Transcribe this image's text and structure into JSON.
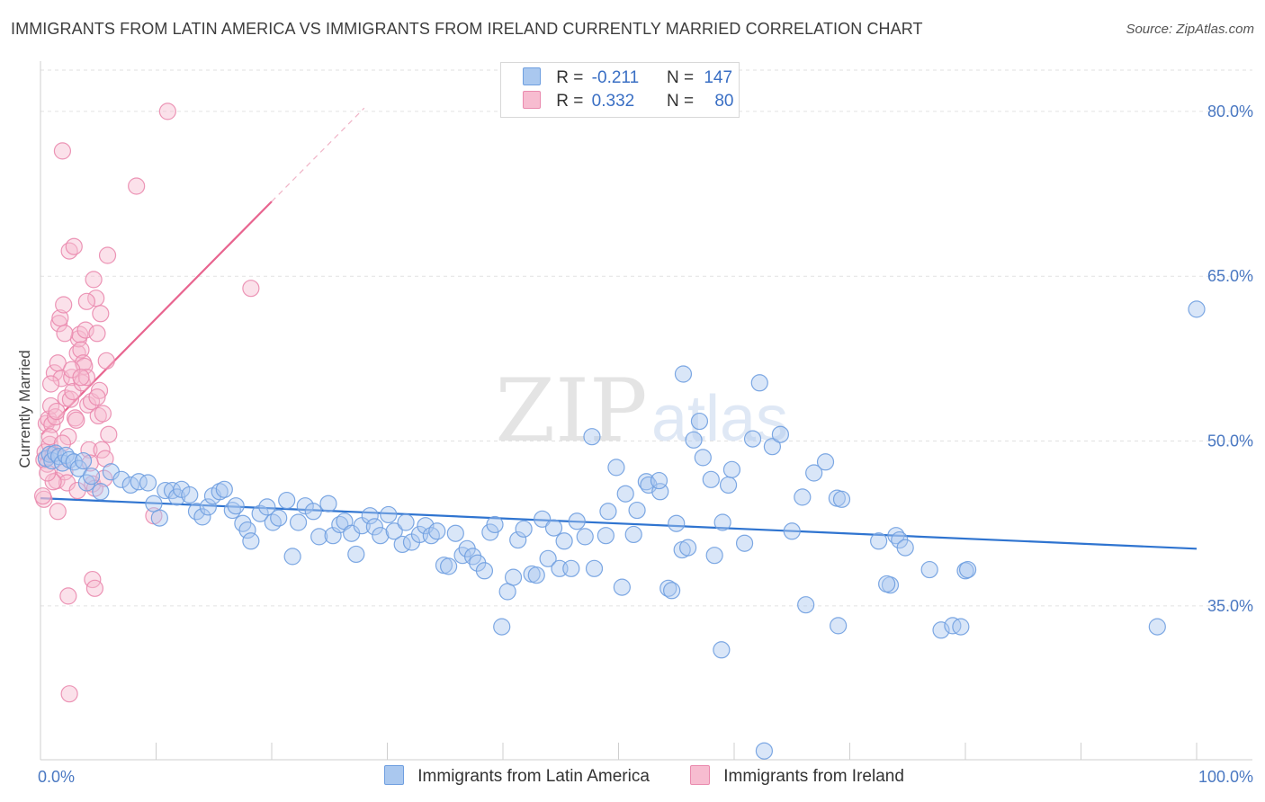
{
  "title": "IMMIGRANTS FROM LATIN AMERICA VS IMMIGRANTS FROM IRELAND CURRENTLY MARRIED CORRELATION CHART",
  "source": "Source: ZipAtlas.com",
  "watermark": {
    "zip": "ZIP",
    "atlas": "atlas"
  },
  "legend": {
    "r_label": "R =",
    "n_label": "N =",
    "rows": [
      {
        "r": "-0.211",
        "n": "147",
        "color": "#aac8ef",
        "edge": "#6f9fe0"
      },
      {
        "r": "0.332",
        "n": "80",
        "color": "#f7bcd0",
        "edge": "#ea8aae"
      }
    ]
  },
  "chart_data": {
    "type": "scatter",
    "title": "IMMIGRANTS FROM LATIN AMERICA VS IMMIGRANTS FROM IRELAND CURRENTLY MARRIED CORRELATION CHART",
    "xlabel": "",
    "ylabel": "Currently Married",
    "xlim": [
      0,
      100
    ],
    "ylim": [
      21,
      84
    ],
    "x_tick_labels": [
      "0.0%",
      "100.0%"
    ],
    "y_ticks": [
      35,
      50,
      65,
      80
    ],
    "y_tick_labels": [
      "35.0%",
      "50.0%",
      "65.0%",
      "80.0%"
    ],
    "grid": true,
    "legend_position": "bottom",
    "series": [
      {
        "name": "Immigrants from Latin America",
        "color": "#6f9fe0",
        "fill": "#aac8ef",
        "trend": {
          "x": [
            0,
            100
          ],
          "y": [
            44.8,
            40.2
          ]
        },
        "points": [
          [
            0.5,
            48.4
          ],
          [
            0.8,
            48.8
          ],
          [
            1.0,
            48.2
          ],
          [
            1.3,
            48.9
          ],
          [
            1.6,
            48.6
          ],
          [
            1.9,
            48.0
          ],
          [
            2.2,
            48.7
          ],
          [
            2.5,
            48.3
          ],
          [
            2.9,
            48.1
          ],
          [
            3.3,
            47.5
          ],
          [
            3.7,
            48.2
          ],
          [
            4.0,
            46.2
          ],
          [
            4.4,
            46.8
          ],
          [
            5.2,
            45.4
          ],
          [
            6.1,
            47.2
          ],
          [
            7.0,
            46.5
          ],
          [
            7.8,
            46.0
          ],
          [
            8.5,
            46.3
          ],
          [
            9.3,
            46.2
          ],
          [
            9.8,
            44.3
          ],
          [
            10.3,
            43.0
          ],
          [
            10.8,
            45.5
          ],
          [
            11.4,
            45.5
          ],
          [
            11.8,
            44.9
          ],
          [
            12.2,
            45.6
          ],
          [
            12.9,
            45.1
          ],
          [
            13.5,
            43.6
          ],
          [
            14.0,
            43.1
          ],
          [
            14.5,
            44.0
          ],
          [
            14.9,
            45.0
          ],
          [
            15.5,
            45.4
          ],
          [
            15.9,
            45.6
          ],
          [
            16.6,
            43.7
          ],
          [
            16.9,
            44.1
          ],
          [
            17.5,
            42.5
          ],
          [
            17.9,
            41.9
          ],
          [
            18.2,
            40.9
          ],
          [
            19.0,
            43.4
          ],
          [
            19.6,
            44.0
          ],
          [
            20.1,
            42.6
          ],
          [
            20.6,
            43.0
          ],
          [
            21.3,
            44.6
          ],
          [
            21.8,
            39.5
          ],
          [
            22.3,
            42.6
          ],
          [
            22.9,
            44.1
          ],
          [
            23.6,
            43.6
          ],
          [
            24.1,
            41.3
          ],
          [
            24.9,
            44.3
          ],
          [
            25.3,
            41.4
          ],
          [
            25.9,
            42.4
          ],
          [
            26.3,
            42.7
          ],
          [
            26.9,
            41.6
          ],
          [
            27.3,
            39.7
          ],
          [
            27.8,
            42.3
          ],
          [
            28.5,
            43.2
          ],
          [
            28.9,
            42.2
          ],
          [
            29.4,
            41.4
          ],
          [
            30.1,
            43.3
          ],
          [
            30.6,
            41.8
          ],
          [
            31.3,
            40.6
          ],
          [
            31.6,
            42.6
          ],
          [
            32.1,
            40.8
          ],
          [
            32.8,
            41.5
          ],
          [
            33.3,
            42.3
          ],
          [
            33.8,
            41.4
          ],
          [
            34.3,
            41.8
          ],
          [
            34.9,
            38.7
          ],
          [
            35.3,
            38.6
          ],
          [
            35.9,
            41.6
          ],
          [
            36.5,
            39.6
          ],
          [
            36.9,
            40.2
          ],
          [
            37.4,
            39.5
          ],
          [
            37.8,
            38.9
          ],
          [
            38.4,
            38.2
          ],
          [
            38.9,
            41.7
          ],
          [
            39.3,
            42.4
          ],
          [
            39.9,
            33.1
          ],
          [
            40.4,
            36.3
          ],
          [
            40.9,
            37.6
          ],
          [
            41.3,
            41.0
          ],
          [
            41.8,
            42.0
          ],
          [
            42.5,
            37.9
          ],
          [
            42.9,
            37.8
          ],
          [
            43.4,
            42.9
          ],
          [
            43.9,
            39.3
          ],
          [
            44.4,
            42.1
          ],
          [
            44.9,
            38.4
          ],
          [
            45.3,
            40.9
          ],
          [
            45.9,
            38.4
          ],
          [
            46.4,
            42.7
          ],
          [
            47.1,
            41.3
          ],
          [
            47.7,
            50.4
          ],
          [
            47.9,
            38.4
          ],
          [
            48.9,
            41.4
          ],
          [
            49.1,
            43.6
          ],
          [
            49.8,
            47.6
          ],
          [
            50.3,
            36.7
          ],
          [
            50.6,
            45.2
          ],
          [
            51.3,
            41.5
          ],
          [
            51.6,
            43.7
          ],
          [
            52.4,
            46.3
          ],
          [
            52.6,
            46.0
          ],
          [
            53.6,
            45.4
          ],
          [
            54.3,
            36.6
          ],
          [
            54.6,
            36.4
          ],
          [
            55.0,
            42.5
          ],
          [
            55.5,
            40.1
          ],
          [
            56.0,
            40.3
          ],
          [
            56.5,
            50.1
          ],
          [
            57.0,
            51.8
          ],
          [
            57.3,
            48.5
          ],
          [
            58.0,
            46.5
          ],
          [
            58.3,
            39.6
          ],
          [
            59.0,
            42.6
          ],
          [
            59.5,
            46.0
          ],
          [
            59.8,
            47.4
          ],
          [
            60.9,
            40.7
          ],
          [
            61.6,
            50.2
          ],
          [
            62.2,
            55.3
          ],
          [
            62.6,
            21.8
          ],
          [
            63.3,
            49.5
          ],
          [
            64.0,
            50.6
          ],
          [
            65.0,
            41.8
          ],
          [
            65.9,
            44.9
          ],
          [
            66.2,
            35.1
          ],
          [
            66.9,
            47.1
          ],
          [
            67.9,
            48.1
          ],
          [
            68.9,
            44.8
          ],
          [
            69.3,
            44.7
          ],
          [
            72.5,
            40.9
          ],
          [
            73.5,
            36.9
          ],
          [
            74.0,
            41.4
          ],
          [
            74.3,
            41.0
          ],
          [
            74.8,
            40.3
          ],
          [
            76.9,
            38.3
          ],
          [
            77.9,
            32.8
          ],
          [
            78.9,
            33.2
          ],
          [
            80.0,
            38.2
          ],
          [
            80.2,
            38.3
          ],
          [
            96.6,
            33.1
          ],
          [
            100.0,
            62.0
          ],
          [
            79.6,
            33.1
          ],
          [
            55.6,
            56.1
          ],
          [
            53.5,
            46.4
          ],
          [
            58.9,
            31.0
          ],
          [
            69.0,
            33.2
          ],
          [
            73.2,
            37.0
          ]
        ]
      },
      {
        "name": "Immigrants from Ireland",
        "color": "#ea8aae",
        "fill": "#f7bcd0",
        "trend": {
          "x": [
            0.1,
            20.0
          ],
          "y": [
            50.6,
            71.8
          ]
        },
        "trend_dashed": {
          "x": [
            20.0,
            28.0
          ],
          "y": [
            71.8,
            80.3
          ]
        },
        "points": [
          [
            0.3,
            44.7
          ],
          [
            0.3,
            48.3
          ],
          [
            0.4,
            49.0
          ],
          [
            0.5,
            51.6
          ],
          [
            0.6,
            47.9
          ],
          [
            0.7,
            52.0
          ],
          [
            0.8,
            49.7
          ],
          [
            0.9,
            53.2
          ],
          [
            1.0,
            51.5
          ],
          [
            1.1,
            48.8
          ],
          [
            1.2,
            56.2
          ],
          [
            1.3,
            52.2
          ],
          [
            1.4,
            46.4
          ],
          [
            1.5,
            57.1
          ],
          [
            1.6,
            60.7
          ],
          [
            1.7,
            61.2
          ],
          [
            1.8,
            55.7
          ],
          [
            1.9,
            76.4
          ],
          [
            2.0,
            62.4
          ],
          [
            2.1,
            47.2
          ],
          [
            2.2,
            53.9
          ],
          [
            2.3,
            46.2
          ],
          [
            2.4,
            50.4
          ],
          [
            2.5,
            67.3
          ],
          [
            2.6,
            53.8
          ],
          [
            2.7,
            55.8
          ],
          [
            2.8,
            54.5
          ],
          [
            2.9,
            67.7
          ],
          [
            3.0,
            52.1
          ],
          [
            3.1,
            51.9
          ],
          [
            3.2,
            58.0
          ],
          [
            3.3,
            59.3
          ],
          [
            3.4,
            59.7
          ],
          [
            3.5,
            58.3
          ],
          [
            3.6,
            55.3
          ],
          [
            3.7,
            57.1
          ],
          [
            3.8,
            56.8
          ],
          [
            3.9,
            60.1
          ],
          [
            4.0,
            55.8
          ],
          [
            4.1,
            53.3
          ],
          [
            4.2,
            49.2
          ],
          [
            4.3,
            48.0
          ],
          [
            4.4,
            53.6
          ],
          [
            4.5,
            46.1
          ],
          [
            4.6,
            64.7
          ],
          [
            4.7,
            45.7
          ],
          [
            4.8,
            63.0
          ],
          [
            4.9,
            59.8
          ],
          [
            5.0,
            52.3
          ],
          [
            5.1,
            54.6
          ],
          [
            5.2,
            61.6
          ],
          [
            5.3,
            49.2
          ],
          [
            5.4,
            52.5
          ],
          [
            5.5,
            46.6
          ],
          [
            5.6,
            48.4
          ],
          [
            5.7,
            57.3
          ],
          [
            5.8,
            66.9
          ],
          [
            5.9,
            50.6
          ],
          [
            11.0,
            80.0
          ],
          [
            8.3,
            73.2
          ],
          [
            18.2,
            63.9
          ],
          [
            4.5,
            37.4
          ],
          [
            2.4,
            35.9
          ],
          [
            2.5,
            27.0
          ],
          [
            4.7,
            36.6
          ],
          [
            9.8,
            43.2
          ],
          [
            1.1,
            46.3
          ],
          [
            0.8,
            50.4
          ],
          [
            1.5,
            43.6
          ],
          [
            3.2,
            45.5
          ],
          [
            0.6,
            47.1
          ],
          [
            1.9,
            49.8
          ],
          [
            2.7,
            56.5
          ],
          [
            4.0,
            62.7
          ],
          [
            0.9,
            55.2
          ],
          [
            3.5,
            55.8
          ],
          [
            2.1,
            59.8
          ],
          [
            1.4,
            52.7
          ],
          [
            4.9,
            54.0
          ],
          [
            0.2,
            45.0
          ]
        ]
      }
    ]
  }
}
